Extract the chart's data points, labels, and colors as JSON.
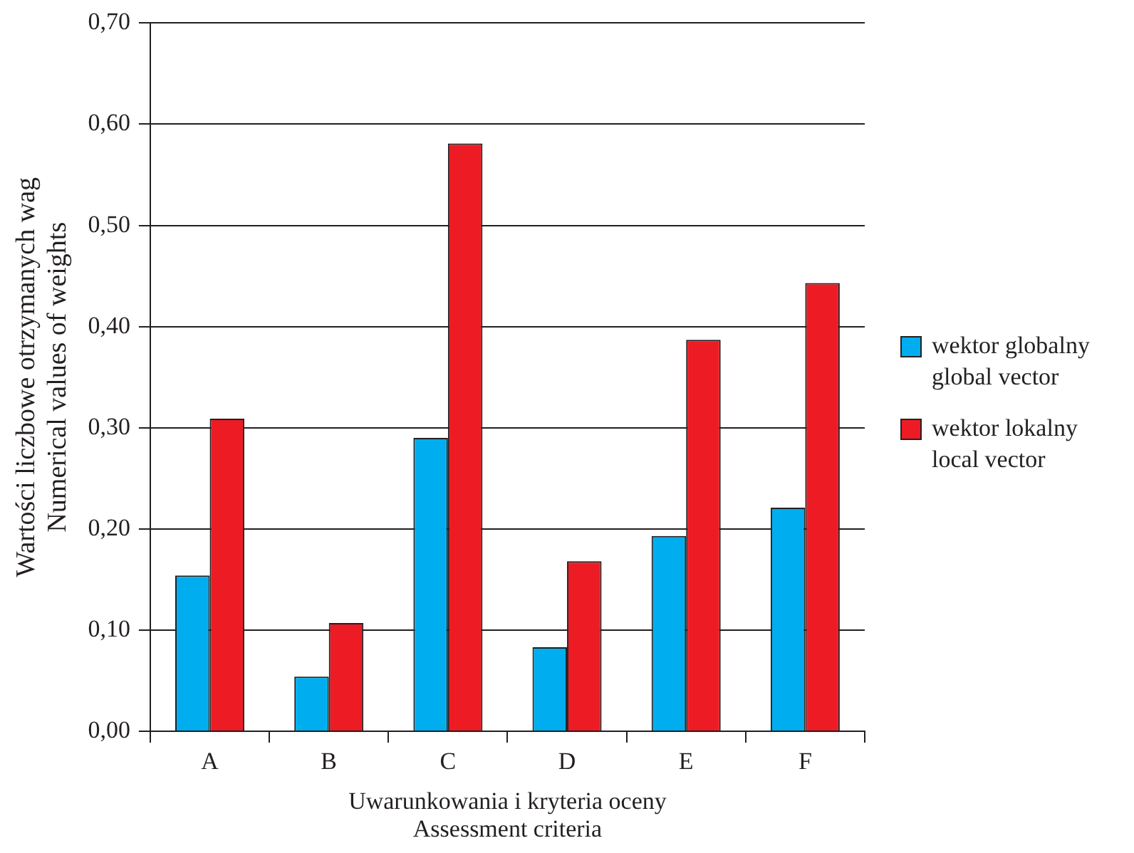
{
  "chart_data": {
    "type": "bar",
    "xlabel": "Uwarunkowania i kryteria oceny\nAssessment criteria",
    "ylabel": "Wartości liczbowe otrzymanych wag\nNumerical values of weights",
    "categories": [
      "A",
      "B",
      "C",
      "D",
      "E",
      "F"
    ],
    "series": [
      {
        "name": "wektor globalny\nglobal vector",
        "color": "#00aeef",
        "values": [
          0.154,
          0.054,
          0.29,
          0.083,
          0.193,
          0.221
        ]
      },
      {
        "name": "wektor lokalny\nlocal vector",
        "color": "#ed1c24",
        "values": [
          0.309,
          0.107,
          0.581,
          0.168,
          0.387,
          0.443
        ]
      }
    ],
    "ylim": [
      0,
      0.7
    ],
    "yticks": [
      {
        "value": 0,
        "label": "0,00"
      },
      {
        "value": 0.1,
        "label": "0,10"
      },
      {
        "value": 0.2,
        "label": "0,20"
      },
      {
        "value": 0.3,
        "label": "0,30"
      },
      {
        "value": 0.4,
        "label": "0,40"
      },
      {
        "value": 0.5,
        "label": "0,50"
      },
      {
        "value": 0.6,
        "label": "0,60"
      },
      {
        "value": 0.7,
        "label": "0,70"
      }
    ],
    "grid": "y",
    "legend": "right"
  }
}
